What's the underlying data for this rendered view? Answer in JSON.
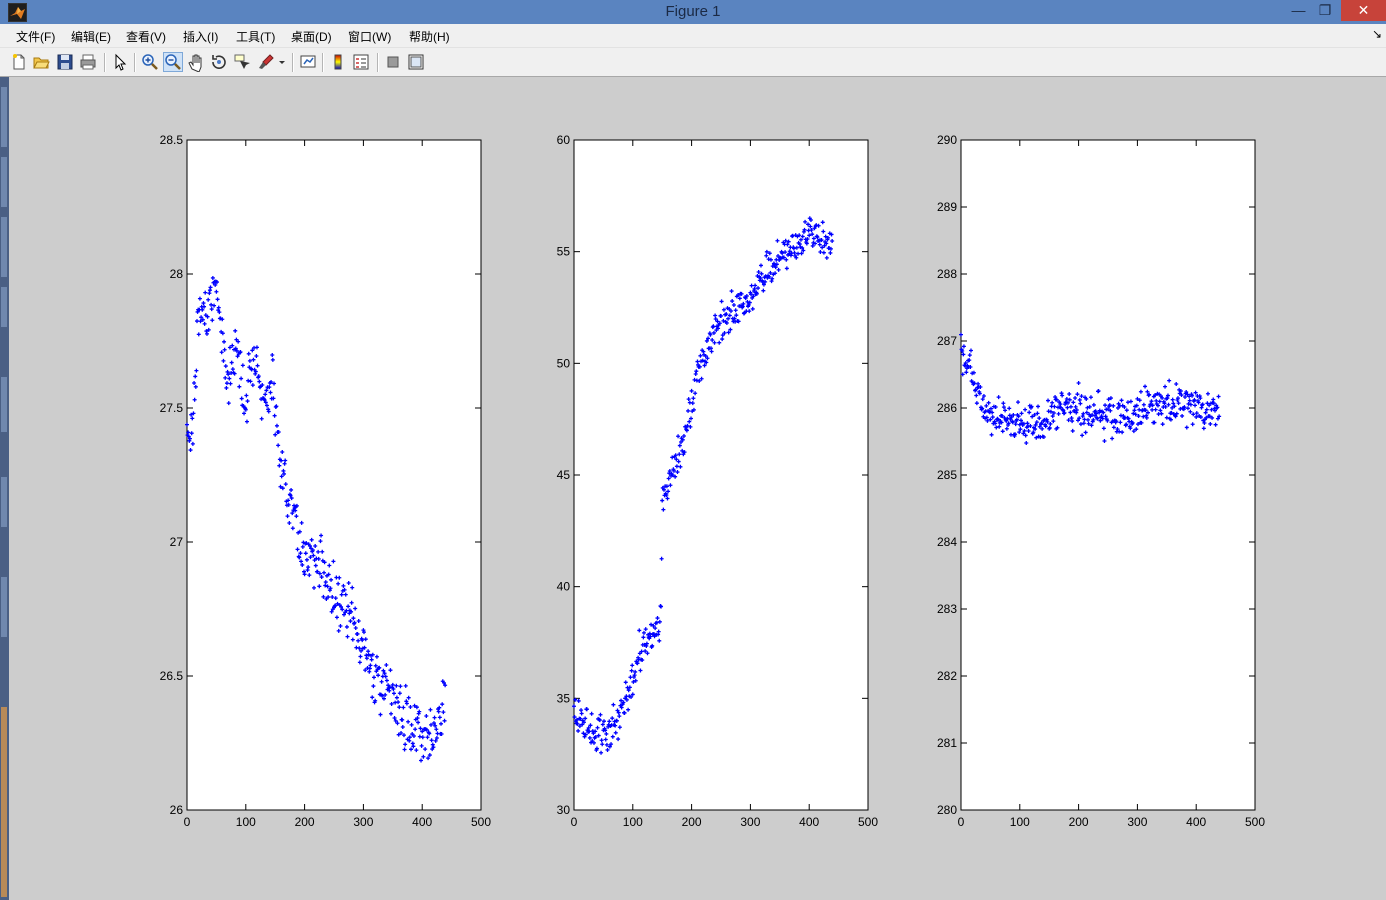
{
  "window": {
    "title": "Figure 1",
    "min_glyph": "—",
    "max_glyph": "❐",
    "close_glyph": "✕"
  },
  "menu": [
    {
      "label": "文件(F)"
    },
    {
      "label": "编辑(E)"
    },
    {
      "label": "查看(V)"
    },
    {
      "label": "插入(I)"
    },
    {
      "label": "工具(T)"
    },
    {
      "label": "桌面(D)"
    },
    {
      "label": "窗口(W)"
    },
    {
      "label": "帮助(H)"
    }
  ],
  "menu_dock_glyph": "↘",
  "toolbar": [
    {
      "icon": "new-figure-icon"
    },
    {
      "icon": "open-file-icon"
    },
    {
      "icon": "save-icon"
    },
    {
      "icon": "print-icon"
    },
    {
      "icon": "edit-plot-arrow-icon"
    },
    {
      "icon": "zoom-in-icon"
    },
    {
      "icon": "zoom-out-icon",
      "active": true
    },
    {
      "icon": "pan-hand-icon"
    },
    {
      "icon": "rotate-3d-icon"
    },
    {
      "icon": "data-cursor-icon"
    },
    {
      "icon": "brush-icon"
    },
    {
      "icon": "link-plot-icon"
    },
    {
      "icon": "colorbar-icon"
    },
    {
      "icon": "legend-icon"
    },
    {
      "icon": "hide-plot-tools-icon"
    },
    {
      "icon": "show-plot-tools-icon"
    }
  ],
  "colors": {
    "marker": "#0000ff",
    "axes_bg": "#ffffff",
    "figure_bg": "#cdcdcd",
    "titlebar": "#5a84c0"
  },
  "chart_data": [
    {
      "type": "scatter",
      "xlim": [
        0,
        500
      ],
      "ylim": [
        26,
        28.5
      ],
      "xticks": [
        0,
        100,
        200,
        300,
        400,
        500
      ],
      "yticks": [
        26,
        26.5,
        27,
        27.5,
        28,
        28.5
      ],
      "xtick_labels": [
        "0",
        "100",
        "200",
        "300",
        "400",
        "500"
      ],
      "ytick_labels": [
        "26",
        "26.5",
        "27",
        "27.5",
        "28",
        "28.5"
      ],
      "marker": "+",
      "n_points": 440,
      "trend_points": [
        [
          0,
          27.4
        ],
        [
          10,
          27.45
        ],
        [
          20,
          27.85
        ],
        [
          30,
          27.85
        ],
        [
          45,
          27.95
        ],
        [
          55,
          27.85
        ],
        [
          70,
          27.6
        ],
        [
          85,
          27.75
        ],
        [
          100,
          27.5
        ],
        [
          115,
          27.75
        ],
        [
          130,
          27.5
        ],
        [
          145,
          27.6
        ],
        [
          160,
          27.25
        ],
        [
          175,
          27.2
        ],
        [
          190,
          27.0
        ],
        [
          210,
          26.95
        ],
        [
          230,
          26.9
        ],
        [
          250,
          26.8
        ],
        [
          280,
          26.7
        ],
        [
          310,
          26.55
        ],
        [
          340,
          26.45
        ],
        [
          370,
          26.35
        ],
        [
          380,
          26.3
        ],
        [
          400,
          26.3
        ],
        [
          420,
          26.3
        ],
        [
          440,
          26.42
        ]
      ],
      "noise": 0.05
    },
    {
      "type": "scatter",
      "xlim": [
        0,
        500
      ],
      "ylim": [
        30,
        60
      ],
      "xticks": [
        0,
        100,
        200,
        300,
        400,
        500
      ],
      "yticks": [
        30,
        35,
        40,
        45,
        50,
        55,
        60
      ],
      "xtick_labels": [
        "0",
        "100",
        "200",
        "300",
        "400",
        "500"
      ],
      "ytick_labels": [
        "30",
        "35",
        "40",
        "45",
        "50",
        "55",
        "60"
      ],
      "marker": "+",
      "n_points": 440,
      "trend_points": [
        [
          0,
          34.5
        ],
        [
          30,
          33.5
        ],
        [
          60,
          33.5
        ],
        [
          90,
          35.0
        ],
        [
          110,
          37.0
        ],
        [
          130,
          37.8
        ],
        [
          148,
          38.5
        ],
        [
          150,
          44.0
        ],
        [
          170,
          45.0
        ],
        [
          190,
          47.0
        ],
        [
          210,
          49.5
        ],
        [
          240,
          51.5
        ],
        [
          270,
          52.3
        ],
        [
          300,
          53.0
        ],
        [
          330,
          54.3
        ],
        [
          360,
          55.0
        ],
        [
          380,
          55.0
        ],
        [
          400,
          56.0
        ],
        [
          420,
          55.5
        ],
        [
          440,
          55.3
        ]
      ],
      "noise": 0.4
    },
    {
      "type": "scatter",
      "xlim": [
        0,
        500
      ],
      "ylim": [
        280,
        290
      ],
      "xticks": [
        0,
        100,
        200,
        300,
        400,
        500
      ],
      "yticks": [
        280,
        281,
        282,
        283,
        284,
        285,
        286,
        287,
        288,
        289,
        290
      ],
      "xtick_labels": [
        "0",
        "100",
        "200",
        "300",
        "400",
        "500"
      ],
      "ytick_labels": [
        "280",
        "281",
        "282",
        "283",
        "284",
        "285",
        "286",
        "287",
        "288",
        "289",
        "290"
      ],
      "marker": "+",
      "n_points": 440,
      "trend_points": [
        [
          0,
          286.8
        ],
        [
          20,
          286.5
        ],
        [
          40,
          285.9
        ],
        [
          80,
          285.8
        ],
        [
          120,
          285.7
        ],
        [
          160,
          285.9
        ],
        [
          200,
          286.0
        ],
        [
          240,
          285.9
        ],
        [
          280,
          285.85
        ],
        [
          320,
          286.0
        ],
        [
          360,
          286.05
        ],
        [
          400,
          286.05
        ],
        [
          440,
          285.9
        ]
      ],
      "noise": 0.15
    }
  ]
}
